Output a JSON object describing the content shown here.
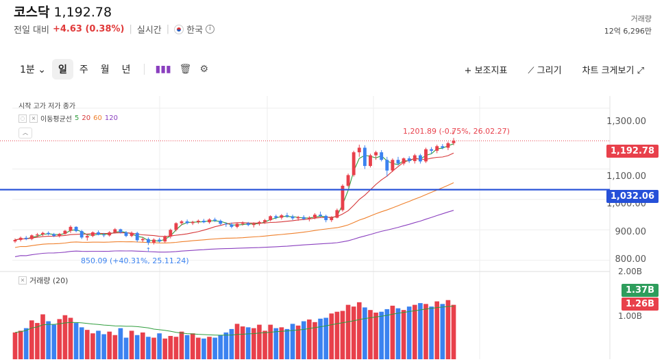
{
  "header": {
    "name": "코스닥",
    "price": "1,192.78",
    "prev_label": "전일 대비",
    "change": "+4.63 (0.38%)",
    "realtime": "실시간",
    "country": "한국",
    "volume_label": "거래량",
    "volume_value": "12억 6,296만"
  },
  "toolbar": {
    "interval": "1분",
    "periods": [
      "일",
      "주",
      "월",
      "년"
    ],
    "selected_period": "일",
    "indicator": "보조지표",
    "draw": "그리기",
    "expand": "차트 크게보기"
  },
  "chart_labels": {
    "ohlc": "시작 고가 저가 종가",
    "ma_title": "이동평균선",
    "ma_periods": [
      "5",
      "20",
      "60",
      "120"
    ],
    "volume_title": "거래량 (20)"
  },
  "price_axis": [
    "1,300.00",
    "1,100.00",
    "1,000.00",
    "900.00",
    "800.00"
  ],
  "volume_axis": [
    "2.00B",
    "1.00B"
  ],
  "tags": {
    "current_price": "1,192.78",
    "line_level": "1,032.06",
    "vol_a": "1.37B",
    "vol_b": "1.26B"
  },
  "annotations": {
    "high": "1,201.89 (-0.75%, 26.02.27)",
    "low": "850.09 (+40.31%, 25.11.24)"
  },
  "colors": {
    "up": "#e8404b",
    "down": "#3b82f0",
    "ma5": "#2e9d3c",
    "ma20": "#d63638",
    "ma60": "#ef7f2a",
    "ma120": "#8a3fbf",
    "hline": "#2650d8"
  },
  "chart_data": {
    "type": "candlestick",
    "ylim": [
      770,
      1340
    ],
    "candles": [
      [
        862,
        872,
        857,
        867
      ],
      [
        867,
        878,
        862,
        874
      ],
      [
        874,
        880,
        866,
        870
      ],
      [
        870,
        885,
        866,
        882
      ],
      [
        882,
        890,
        876,
        885
      ],
      [
        885,
        894,
        880,
        890
      ],
      [
        890,
        895,
        882,
        886
      ],
      [
        886,
        890,
        876,
        880
      ],
      [
        880,
        890,
        875,
        887
      ],
      [
        887,
        900,
        884,
        897
      ],
      [
        897,
        915,
        890,
        910
      ],
      [
        910,
        912,
        892,
        896
      ],
      [
        896,
        900,
        870,
        875
      ],
      [
        875,
        885,
        865,
        880
      ],
      [
        880,
        895,
        876,
        892
      ],
      [
        892,
        898,
        882,
        884
      ],
      [
        884,
        890,
        876,
        882
      ],
      [
        882,
        896,
        878,
        892
      ],
      [
        892,
        906,
        888,
        902
      ],
      [
        902,
        904,
        888,
        892
      ],
      [
        892,
        896,
        876,
        880
      ],
      [
        880,
        895,
        876,
        890
      ],
      [
        890,
        894,
        860,
        866
      ],
      [
        866,
        876,
        860,
        870
      ],
      [
        870,
        875,
        850,
        858
      ],
      [
        858,
        872,
        852,
        868
      ],
      [
        868,
        874,
        858,
        862
      ],
      [
        862,
        882,
        858,
        878
      ],
      [
        878,
        904,
        872,
        900
      ],
      [
        900,
        925,
        895,
        922
      ],
      [
        922,
        932,
        915,
        928
      ],
      [
        928,
        934,
        918,
        922
      ],
      [
        922,
        930,
        916,
        926
      ],
      [
        926,
        934,
        920,
        930
      ],
      [
        930,
        936,
        922,
        925
      ],
      [
        925,
        938,
        920,
        934
      ],
      [
        934,
        940,
        926,
        930
      ],
      [
        930,
        934,
        916,
        920
      ],
      [
        920,
        925,
        910,
        918
      ],
      [
        918,
        924,
        905,
        910
      ],
      [
        910,
        924,
        905,
        920
      ],
      [
        920,
        928,
        914,
        922
      ],
      [
        922,
        926,
        912,
        916
      ],
      [
        916,
        925,
        908,
        920
      ],
      [
        920,
        930,
        914,
        926
      ],
      [
        926,
        936,
        920,
        932
      ],
      [
        932,
        948,
        928,
        945
      ],
      [
        945,
        950,
        935,
        940
      ],
      [
        940,
        952,
        934,
        948
      ],
      [
        948,
        956,
        940,
        944
      ],
      [
        944,
        950,
        932,
        938
      ],
      [
        938,
        946,
        930,
        942
      ],
      [
        942,
        948,
        932,
        936
      ],
      [
        936,
        945,
        928,
        940
      ],
      [
        940,
        955,
        935,
        950
      ],
      [
        950,
        960,
        942,
        946
      ],
      [
        946,
        950,
        925,
        932
      ],
      [
        932,
        945,
        926,
        940
      ],
      [
        940,
        970,
        938,
        965
      ],
      [
        965,
        1050,
        960,
        1045
      ],
      [
        1045,
        1085,
        1040,
        1080
      ],
      [
        1080,
        1160,
        1075,
        1155
      ],
      [
        1155,
        1180,
        1140,
        1170
      ],
      [
        1170,
        1178,
        1100,
        1110
      ],
      [
        1110,
        1150,
        1105,
        1145
      ],
      [
        1145,
        1160,
        1130,
        1155
      ],
      [
        1155,
        1162,
        1125,
        1130
      ],
      [
        1130,
        1140,
        1075,
        1095
      ],
      [
        1095,
        1135,
        1090,
        1130
      ],
      [
        1130,
        1140,
        1112,
        1118
      ],
      [
        1118,
        1138,
        1112,
        1135
      ],
      [
        1135,
        1142,
        1120,
        1126
      ],
      [
        1126,
        1150,
        1118,
        1145
      ],
      [
        1145,
        1150,
        1118,
        1125
      ],
      [
        1125,
        1170,
        1120,
        1165
      ],
      [
        1165,
        1172,
        1150,
        1160
      ],
      [
        1160,
        1180,
        1152,
        1175
      ],
      [
        1175,
        1182,
        1165,
        1170
      ],
      [
        1170,
        1190,
        1162,
        1185
      ],
      [
        1185,
        1202,
        1178,
        1193
      ]
    ],
    "volume_ylim": [
      0,
      2.0
    ],
    "volumes": [
      0.62,
      0.66,
      0.72,
      0.9,
      0.84,
      1.04,
      0.88,
      0.8,
      0.93,
      1.02,
      0.96,
      0.84,
      0.74,
      0.68,
      0.6,
      0.66,
      0.58,
      0.64,
      0.56,
      0.72,
      0.5,
      0.66,
      0.56,
      0.62,
      0.52,
      0.5,
      0.6,
      0.48,
      0.54,
      0.52,
      0.64,
      0.56,
      0.6,
      0.5,
      0.48,
      0.52,
      0.5,
      0.56,
      0.62,
      0.7,
      0.82,
      0.76,
      0.74,
      0.72,
      0.8,
      0.66,
      0.8,
      0.72,
      0.74,
      0.7,
      0.82,
      0.78,
      0.88,
      0.92,
      0.86,
      0.94,
      0.96,
      1.06,
      1.1,
      1.12,
      1.26,
      1.22,
      1.32,
      1.2,
      1.14,
      1.08,
      1.1,
      1.16,
      1.24,
      1.18,
      1.14,
      1.22,
      1.26,
      1.3,
      1.28,
      1.22,
      1.34,
      1.28,
      1.37,
      1.26
    ]
  }
}
